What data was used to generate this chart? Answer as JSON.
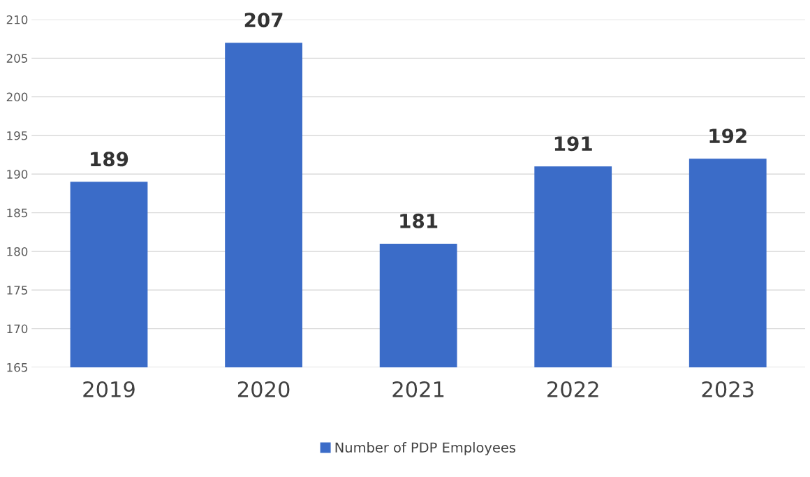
{
  "chart_data": {
    "type": "bar",
    "categories": [
      "2019",
      "2020",
      "2021",
      "2022",
      "2023"
    ],
    "series": [
      {
        "name": "Number of PDP Employees",
        "color": "#3b6cc8",
        "values": [
          189,
          207,
          181,
          191,
          192
        ]
      }
    ],
    "ylim": [
      165,
      210
    ],
    "yticks": [
      165,
      170,
      175,
      180,
      185,
      190,
      195,
      200,
      205,
      210
    ],
    "grid": "y",
    "legend": "bottom",
    "data_labels": true
  }
}
